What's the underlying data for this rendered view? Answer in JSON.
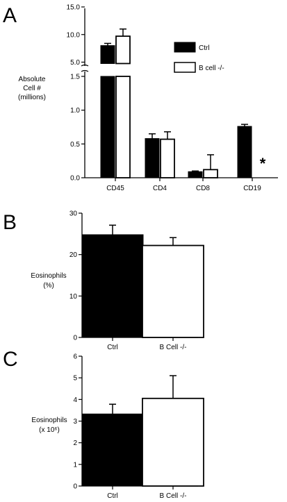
{
  "chart_data": [
    {
      "panel": "A",
      "type": "bar",
      "ylabel": [
        "Absolute",
        "Cell #",
        "(millions)"
      ],
      "categories": [
        "CD45",
        "CD4",
        "CD8",
        "CD19"
      ],
      "series": [
        {
          "name": "Ctrl",
          "color": "#000000",
          "values": [
            8.0,
            0.58,
            0.09,
            0.76
          ],
          "errors": [
            0.4,
            0.07,
            0.01,
            0.03
          ]
        },
        {
          "name": "B cell -/-",
          "color": "#ffffff",
          "values": [
            9.7,
            0.57,
            0.12,
            0.0
          ],
          "errors": [
            1.3,
            0.11,
            0.22,
            0.0
          ]
        }
      ],
      "ylim_lower": [
        0,
        1.5
      ],
      "yticks_lower": [
        "0.0",
        "0.5",
        "1.0",
        "1.5"
      ],
      "ylim_upper": [
        5.0,
        15.0
      ],
      "yticks_upper": [
        "5.0",
        "10.0",
        "15.0"
      ],
      "axis_break": true,
      "annotation": "*",
      "legend_position": "top-right"
    },
    {
      "panel": "B",
      "type": "bar",
      "ylabel": [
        "Eosinophils",
        "(%)"
      ],
      "categories": [
        "Ctrl",
        "B Cell -/-"
      ],
      "values": [
        24.8,
        22.2
      ],
      "errors": [
        2.3,
        1.9
      ],
      "colors": [
        "#000000",
        "#ffffff"
      ],
      "ylim": [
        0,
        30
      ],
      "yticks": [
        "0",
        "10",
        "20",
        "30"
      ]
    },
    {
      "panel": "C",
      "type": "bar",
      "ylabel": [
        "Eosinophils",
        "(x 10⁶)"
      ],
      "categories": [
        "Ctrl",
        "B Cell -/-"
      ],
      "values": [
        3.33,
        4.05
      ],
      "errors": [
        0.45,
        1.05
      ],
      "colors": [
        "#000000",
        "#ffffff"
      ],
      "ylim": [
        0,
        6
      ],
      "yticks": [
        "0",
        "1",
        "2",
        "3",
        "4",
        "5",
        "6"
      ]
    }
  ]
}
